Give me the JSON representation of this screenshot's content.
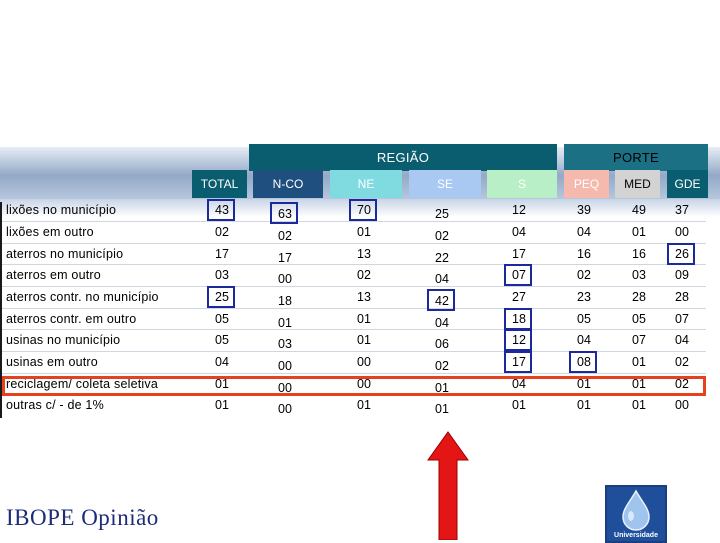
{
  "group_headers": {
    "regiao": "REGIÃO",
    "porte": "PORTE"
  },
  "columns": [
    "TOTAL",
    "N-CO",
    "NE",
    "SE",
    "S",
    "PEQ",
    "MED",
    "GDE"
  ],
  "colors": {
    "group_header_bg": "#0a5d6e",
    "col_total_bg": "#0a5d6e",
    "col_nco_bg": "#1f4f7e",
    "col_ne_bg": "#7fdbe0",
    "col_se_bg": "#a9c8f2",
    "col_s_bg": "#b9efc6",
    "col_peq_bg": "#f6b9ae",
    "col_med_bg": "#d3d3d3",
    "col_gde_bg": "#0a5d6e",
    "box_border": "#1a2a9a",
    "highlight_border": "#e8401c",
    "arrow_fill": "#e31515",
    "brand_text": "#1e2b78"
  },
  "rows": [
    {
      "label": "lixões no município",
      "values": [
        "43",
        "63",
        "70",
        "25",
        "12",
        "39",
        "49",
        "37"
      ]
    },
    {
      "label": "lixões em outro",
      "values": [
        "02",
        "02",
        "01",
        "02",
        "04",
        "04",
        "01",
        "00"
      ]
    },
    {
      "label": "aterros no município",
      "values": [
        "17",
        "17",
        "13",
        "22",
        "17",
        "16",
        "16",
        "26"
      ]
    },
    {
      "label": "aterros em outro",
      "values": [
        "03",
        "00",
        "02",
        "04",
        "07",
        "02",
        "03",
        "09"
      ]
    },
    {
      "label": "aterros contr. no município",
      "values": [
        "25",
        "18",
        "13",
        "42",
        "27",
        "23",
        "28",
        "28"
      ]
    },
    {
      "label": "aterros contr. em outro",
      "values": [
        "05",
        "01",
        "01",
        "04",
        "18",
        "05",
        "05",
        "07"
      ]
    },
    {
      "label": "usinas no município",
      "values": [
        "05",
        "03",
        "01",
        "06",
        "12",
        "04",
        "07",
        "04"
      ]
    },
    {
      "label": "usinas em outro",
      "values": [
        "04",
        "00",
        "00",
        "02",
        "17",
        "08",
        "01",
        "02"
      ]
    },
    {
      "label": "reciclagem/ coleta seletiva",
      "values": [
        "01",
        "00",
        "00",
        "01",
        "04",
        "01",
        "01",
        "02"
      ]
    },
    {
      "label": "outras c/ - de 1%",
      "values": [
        "01",
        "00",
        "01",
        "01",
        "01",
        "01",
        "01",
        "00"
      ]
    }
  ],
  "boxed_cells": [
    {
      "row": 0,
      "col": 0
    },
    {
      "row": 0,
      "col": 1
    },
    {
      "row": 0,
      "col": 2
    },
    {
      "row": 2,
      "col": 7
    },
    {
      "row": 3,
      "col": 4
    },
    {
      "row": 4,
      "col": 0
    },
    {
      "row": 4,
      "col": 3
    },
    {
      "row": 5,
      "col": 4
    },
    {
      "row": 6,
      "col": 4
    },
    {
      "row": 7,
      "col": 4
    },
    {
      "row": 7,
      "col": 5
    }
  ],
  "highlighted_row": "reciclagem/ coleta seletiva",
  "footer": {
    "brand": "IBOPE Opinião",
    "logo_icon": "water-drop-icon",
    "logo_text": "Universidade"
  }
}
